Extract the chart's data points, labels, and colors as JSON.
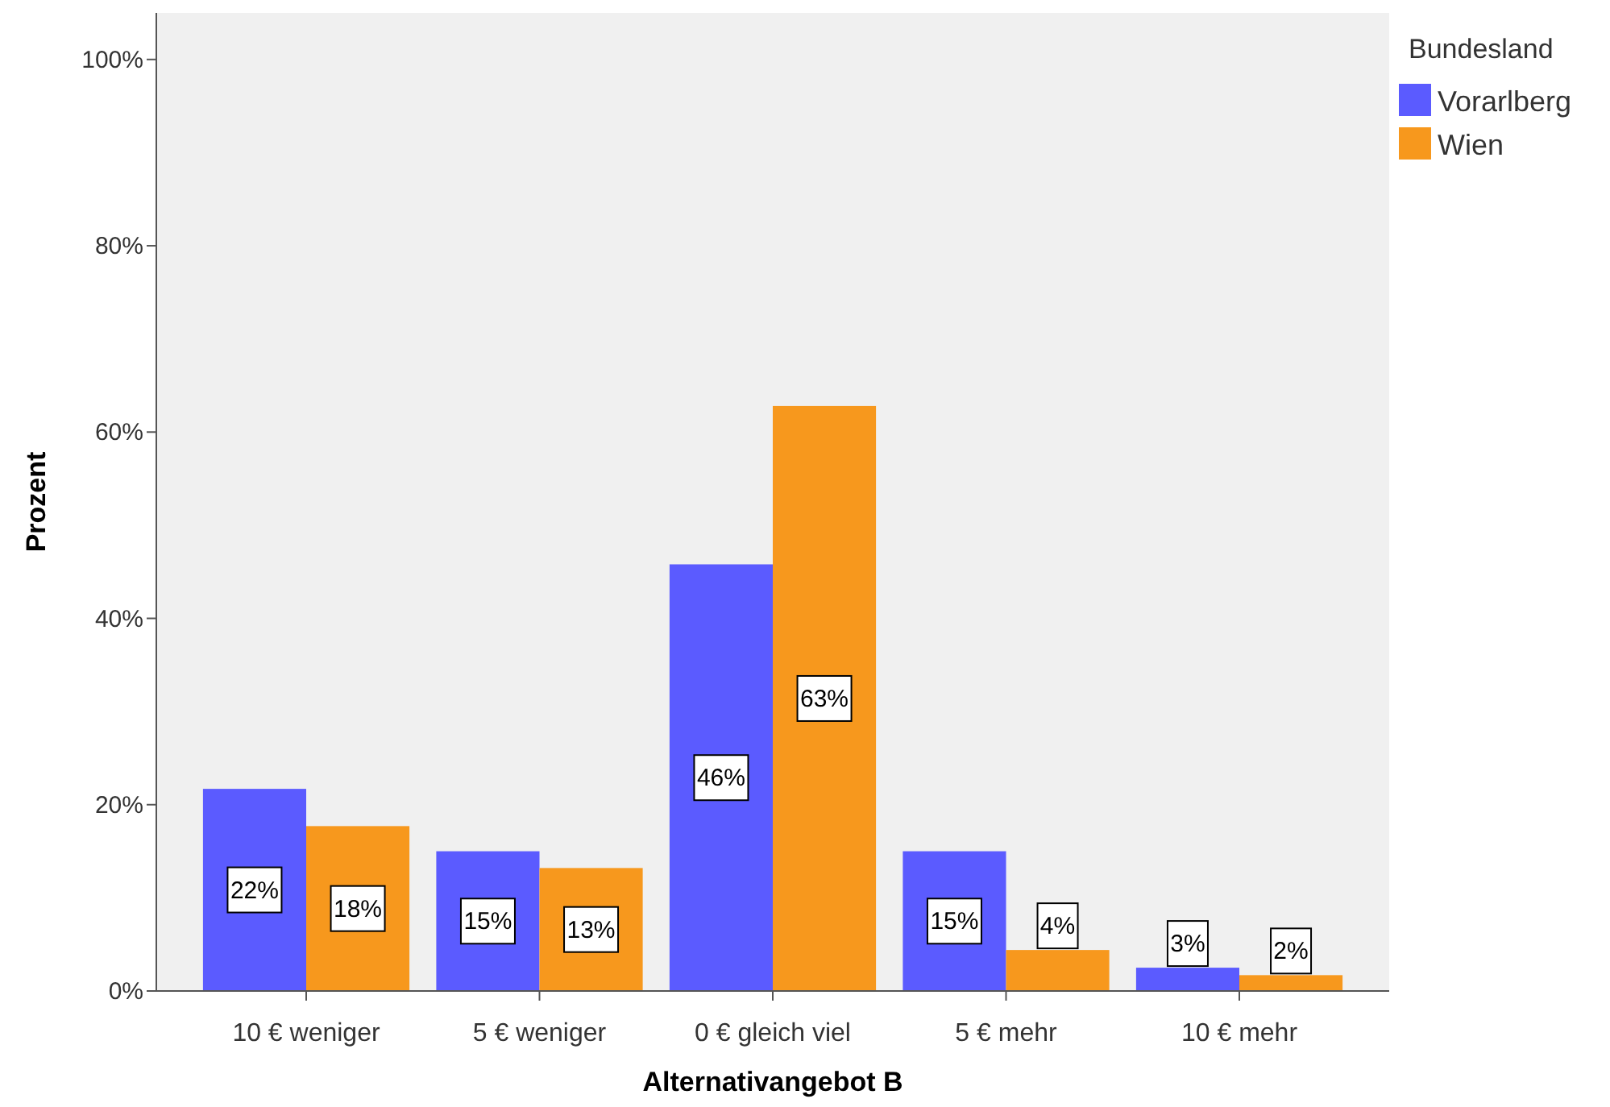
{
  "chart_data": {
    "type": "bar",
    "xlabel": "Alternativangebot B",
    "ylabel": "Prozent",
    "legend_title": "Bundesland",
    "legend": "top right",
    "grid": false,
    "categories": [
      "10 € weniger",
      "5 € weniger",
      "0 € gleich viel",
      "5 € mehr",
      "10 € mehr"
    ],
    "ylim": [
      0,
      105
    ],
    "yticks": [
      {
        "value": 0,
        "label": "0%"
      },
      {
        "value": 20,
        "label": "20%"
      },
      {
        "value": 40,
        "label": "40%"
      },
      {
        "value": 60,
        "label": "60%"
      },
      {
        "value": 80,
        "label": "80%"
      },
      {
        "value": 100,
        "label": "100%"
      }
    ],
    "series": [
      {
        "name": "Vorarlberg",
        "color": "#5b5bff",
        "values": [
          21.7,
          15,
          45.8,
          15,
          2.5
        ],
        "value_labels": [
          "22%",
          "15%",
          "46%",
          "15%",
          "3%"
        ]
      },
      {
        "name": "Wien",
        "color": "#f7981d",
        "values": [
          17.7,
          13.2,
          62.8,
          4.4,
          1.7
        ],
        "value_labels": [
          "18%",
          "13%",
          "63%",
          "4%",
          "2%"
        ]
      }
    ]
  }
}
